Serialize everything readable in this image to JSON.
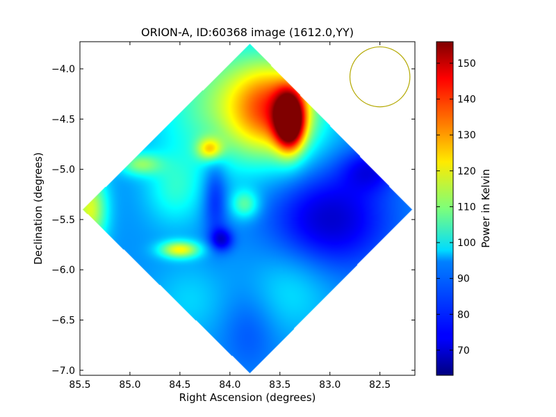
{
  "chart_data": {
    "type": "heatmap",
    "title": "ORION-A, ID:60368 image (1612.0,YY)",
    "xlabel": "Right Ascension (degrees)",
    "ylabel": "Declination (degrees)",
    "xlim": [
      85.5,
      82.15
    ],
    "ylim": [
      -7.05,
      -3.73
    ],
    "x_ticks": [
      85.5,
      85.0,
      84.5,
      84.0,
      83.5,
      83.0,
      82.5
    ],
    "x_tick_labels": [
      "85.5",
      "85.0",
      "84.5",
      "84.0",
      "83.5",
      "83.0",
      "82.5"
    ],
    "y_ticks": [
      -4.0,
      -4.5,
      -5.0,
      -5.5,
      -6.0,
      -6.5,
      -7.0
    ],
    "y_tick_labels": [
      "−4.0",
      "−4.5",
      "−5.0",
      "−5.5",
      "−6.0",
      "−6.5",
      "−7.0"
    ],
    "colorbar": {
      "label": "Power in Kelvin",
      "colormap": "jet",
      "range": [
        63,
        156
      ],
      "ticks": [
        70,
        80,
        90,
        100,
        110,
        120,
        130,
        140,
        150
      ],
      "tick_labels": [
        "70",
        "80",
        "90",
        "100",
        "110",
        "120",
        "130",
        "140",
        "150"
      ]
    },
    "map_footprint": {
      "shape": "diamond",
      "corners": [
        [
          83.8,
          -3.75
        ],
        [
          85.47,
          -5.4
        ],
        [
          83.8,
          -7.03
        ],
        [
          82.18,
          -5.4
        ]
      ]
    },
    "beam_circle": {
      "center": [
        82.5,
        -4.08
      ],
      "radius_deg": 0.3,
      "color": "#b3a800"
    },
    "background_level": 88,
    "features": [
      {
        "x": 83.4,
        "y": -4.52,
        "peak": 156,
        "sx": 0.1,
        "sy": 0.2
      },
      {
        "x": 83.55,
        "y": -4.4,
        "peak": 126,
        "sx": 0.3,
        "sy": 0.32
      },
      {
        "x": 84.0,
        "y": -4.35,
        "peak": 109,
        "sx": 0.5,
        "sy": 0.45
      },
      {
        "x": 84.2,
        "y": -4.8,
        "peak": 115,
        "sx": 0.09,
        "sy": 0.08
      },
      {
        "x": 84.5,
        "y": -5.8,
        "peak": 120,
        "sx": 0.14,
        "sy": 0.06
      },
      {
        "x": 84.9,
        "y": -4.95,
        "peak": 108,
        "sx": 0.15,
        "sy": 0.08
      },
      {
        "x": 85.4,
        "y": -5.4,
        "peak": 118,
        "sx": 0.12,
        "sy": 0.25
      },
      {
        "x": 83.85,
        "y": -5.35,
        "peak": 106,
        "sx": 0.1,
        "sy": 0.1
      },
      {
        "x": 84.55,
        "y": -5.2,
        "peak": 100,
        "sx": 0.2,
        "sy": 0.25
      },
      {
        "x": 83.4,
        "y": -6.2,
        "peak": 96,
        "sx": 0.3,
        "sy": 0.3
      },
      {
        "x": 83.0,
        "y": -5.5,
        "peak": 70,
        "sx": 0.42,
        "sy": 0.35
      },
      {
        "x": 84.15,
        "y": -5.25,
        "peak": 76,
        "sx": 0.09,
        "sy": 0.3
      },
      {
        "x": 84.08,
        "y": -5.7,
        "peak": 72,
        "sx": 0.08,
        "sy": 0.08
      },
      {
        "x": 83.8,
        "y": -6.6,
        "peak": 82,
        "sx": 0.2,
        "sy": 0.3
      },
      {
        "x": 84.4,
        "y": -6.3,
        "peak": 94,
        "sx": 0.25,
        "sy": 0.25
      },
      {
        "x": 82.6,
        "y": -5.0,
        "peak": 76,
        "sx": 0.2,
        "sy": 0.15
      }
    ]
  }
}
